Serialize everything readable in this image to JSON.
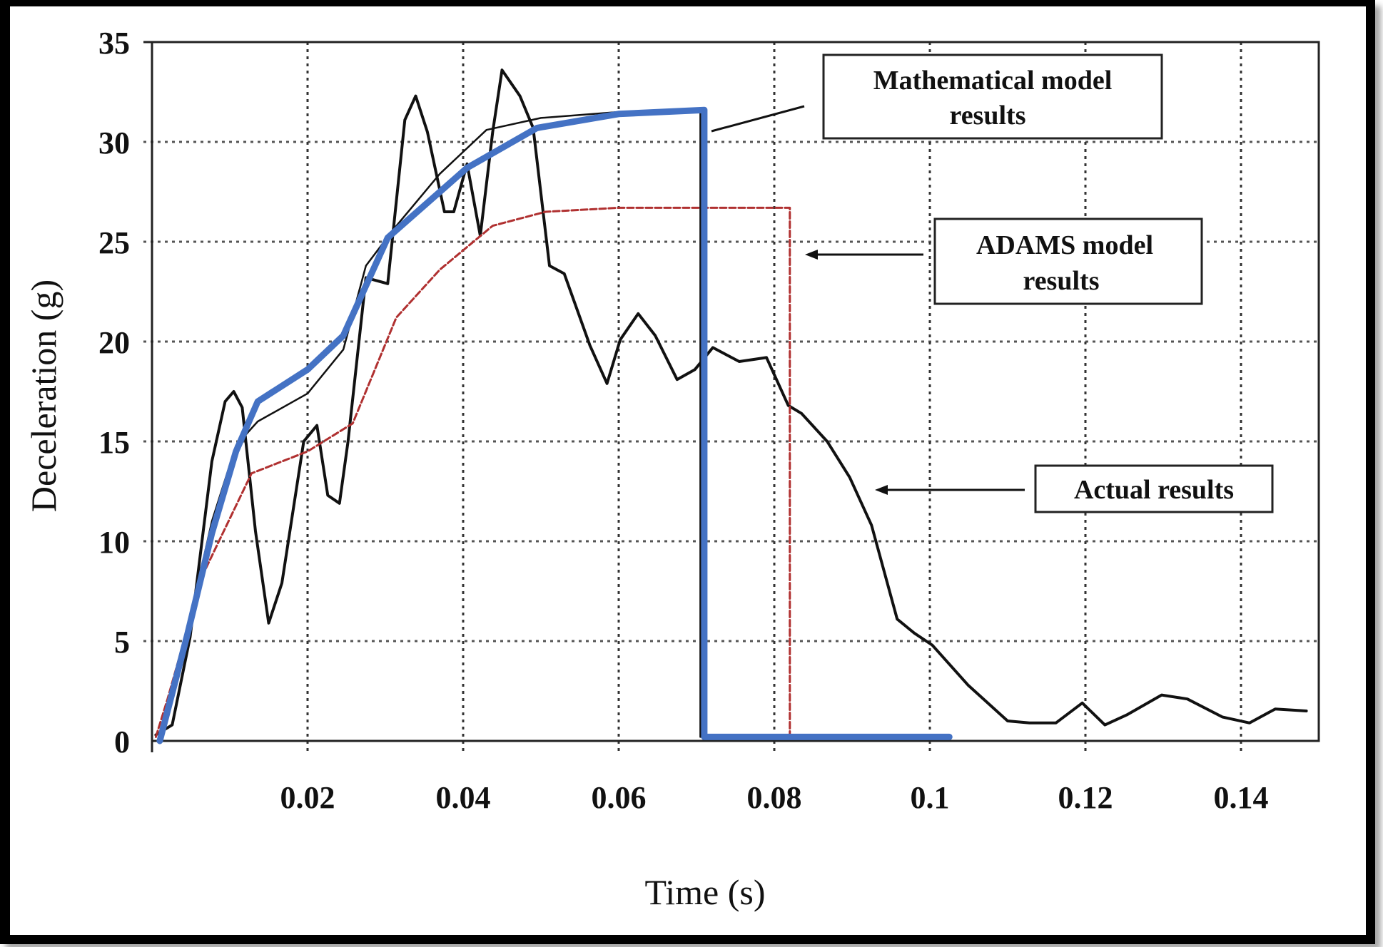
{
  "chart_data": {
    "type": "line",
    "title": "",
    "xlabel": "Time (s)",
    "ylabel": "Deceleration (g)",
    "xlim": [
      0,
      0.15
    ],
    "ylim": [
      0,
      35
    ],
    "grid": true,
    "x_ticks": [
      0.02,
      0.04,
      0.06,
      0.08,
      0.1,
      0.12,
      0.14
    ],
    "x_tick_labels": [
      "0.02",
      "0.04",
      "0.06",
      "0.08",
      "0.1",
      "0.12",
      "0.14"
    ],
    "y_ticks": [
      0,
      5,
      10,
      15,
      20,
      25,
      30,
      35
    ],
    "y_tick_labels": [
      "0",
      "5",
      "10",
      "15",
      "20",
      "25",
      "30",
      "35"
    ],
    "annotations": [
      {
        "id": "math",
        "lines": [
          "Mathematical model",
          "results"
        ],
        "points_to_t": 0.0715,
        "points_to_v": 30.3
      },
      {
        "id": "adams",
        "lines": [
          "ADAMS model",
          "results"
        ],
        "points_to_t": 0.0835,
        "points_to_v": 24.3
      },
      {
        "id": "actual",
        "lines": [
          "Actual results"
        ],
        "points_to_t": 0.0935,
        "points_to_v": 12.6
      }
    ],
    "series": [
      {
        "name": "Mathematical model results (thick)",
        "color": "#4472C4",
        "points": [
          [
            0.001,
            0
          ],
          [
            0.0046,
            5.4
          ],
          [
            0.0077,
            10.4
          ],
          [
            0.0108,
            14.5
          ],
          [
            0.0136,
            17
          ],
          [
            0.02,
            18.6
          ],
          [
            0.0246,
            20.3
          ],
          [
            0.0303,
            25.2
          ],
          [
            0.0405,
            28.7
          ],
          [
            0.0495,
            30.7
          ],
          [
            0.06,
            31.4
          ],
          [
            0.071,
            31.6
          ],
          [
            0.071,
            0.2
          ],
          [
            0.1025,
            0.2
          ]
        ]
      },
      {
        "name": "Mathematical model results",
        "color": "#111111",
        "points": [
          [
            0.001,
            0
          ],
          [
            0.0046,
            5.6
          ],
          [
            0.0077,
            11
          ],
          [
            0.0108,
            14.8
          ],
          [
            0.0136,
            16
          ],
          [
            0.02,
            17.4
          ],
          [
            0.0246,
            19.6
          ],
          [
            0.0275,
            23.8
          ],
          [
            0.031,
            25.6
          ],
          [
            0.037,
            28.4
          ],
          [
            0.043,
            30.6
          ],
          [
            0.05,
            31.2
          ],
          [
            0.06,
            31.5
          ],
          [
            0.0705,
            31.6
          ],
          [
            0.0705,
            0.2
          ],
          [
            0.072,
            0.2
          ]
        ]
      },
      {
        "name": "ADAMS model results",
        "color": "#B03030",
        "points": [
          [
            0.0005,
            0.2
          ],
          [
            0.002,
            2.1
          ],
          [
            0.0065,
            8.3
          ],
          [
            0.0128,
            13.4
          ],
          [
            0.02,
            14.5
          ],
          [
            0.0258,
            15.9
          ],
          [
            0.0314,
            21.2
          ],
          [
            0.037,
            23.6
          ],
          [
            0.0438,
            25.8
          ],
          [
            0.0506,
            26.5
          ],
          [
            0.06,
            26.7
          ],
          [
            0.082,
            26.7
          ],
          [
            0.082,
            0.3
          ],
          [
            0.09,
            0.3
          ]
        ]
      },
      {
        "name": "Actual results",
        "color": "#111111",
        "points": [
          [
            0.0005,
            0.3
          ],
          [
            0.0026,
            0.8
          ],
          [
            0.0049,
            5.2
          ],
          [
            0.0077,
            14
          ],
          [
            0.0094,
            17
          ],
          [
            0.0105,
            17.5
          ],
          [
            0.0116,
            16.7
          ],
          [
            0.0133,
            10.5
          ],
          [
            0.015,
            5.9
          ],
          [
            0.0167,
            7.9
          ],
          [
            0.0195,
            15
          ],
          [
            0.0212,
            15.8
          ],
          [
            0.0226,
            12.3
          ],
          [
            0.0241,
            11.9
          ],
          [
            0.0252,
            15
          ],
          [
            0.0275,
            23.2
          ],
          [
            0.0303,
            22.9
          ],
          [
            0.0325,
            31.1
          ],
          [
            0.0339,
            32.3
          ],
          [
            0.0354,
            30.5
          ],
          [
            0.0376,
            26.5
          ],
          [
            0.0388,
            26.5
          ],
          [
            0.0405,
            28.9
          ],
          [
            0.0422,
            25.3
          ],
          [
            0.0438,
            30.5
          ],
          [
            0.045,
            33.6
          ],
          [
            0.0473,
            32.3
          ],
          [
            0.049,
            30.7
          ],
          [
            0.0511,
            23.8
          ],
          [
            0.053,
            23.4
          ],
          [
            0.0563,
            19.8
          ],
          [
            0.0585,
            17.9
          ],
          [
            0.0602,
            20.1
          ],
          [
            0.0625,
            21.4
          ],
          [
            0.0647,
            20.3
          ],
          [
            0.0675,
            18.1
          ],
          [
            0.0698,
            18.6
          ],
          [
            0.0721,
            19.7
          ],
          [
            0.0755,
            19
          ],
          [
            0.079,
            19.2
          ],
          [
            0.0818,
            16.8
          ],
          [
            0.0835,
            16.4
          ],
          [
            0.0868,
            15
          ],
          [
            0.0897,
            13.2
          ],
          [
            0.0925,
            10.8
          ],
          [
            0.0958,
            6.1
          ],
          [
            0.098,
            5.4
          ],
          [
            0.1003,
            4.8
          ],
          [
            0.1049,
            2.8
          ],
          [
            0.11,
            1
          ],
          [
            0.1128,
            0.9
          ],
          [
            0.1162,
            0.9
          ],
          [
            0.1196,
            1.9
          ],
          [
            0.1225,
            0.8
          ],
          [
            0.1253,
            1.3
          ],
          [
            0.1298,
            2.3
          ],
          [
            0.1331,
            2.1
          ],
          [
            0.1376,
            1.2
          ],
          [
            0.1411,
            0.9
          ],
          [
            0.1444,
            1.6
          ],
          [
            0.1484,
            1.5
          ]
        ]
      }
    ]
  }
}
